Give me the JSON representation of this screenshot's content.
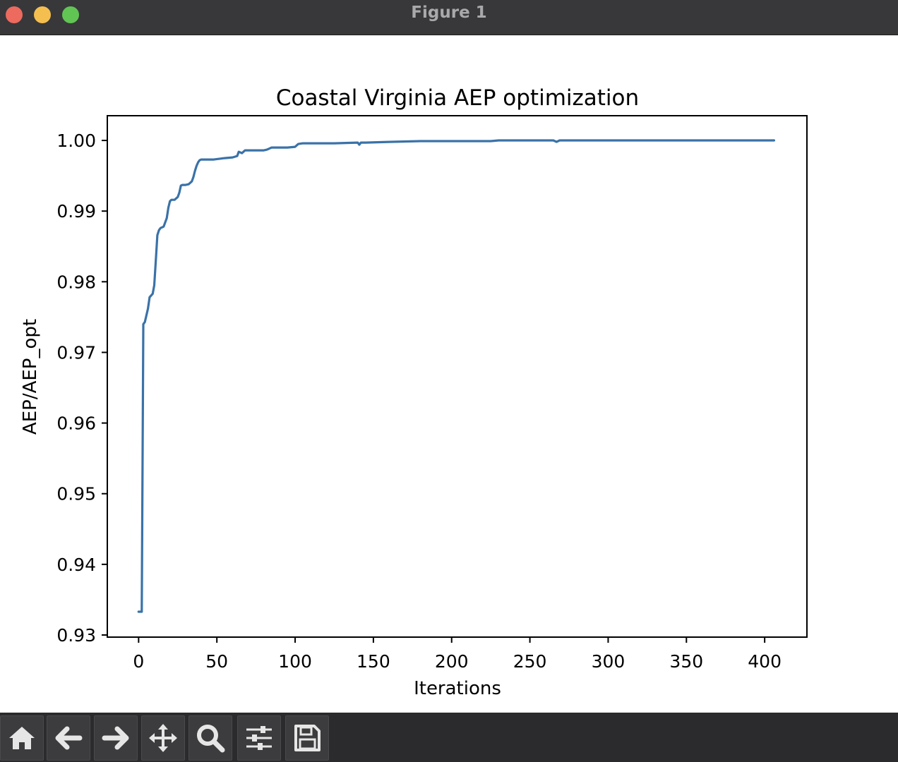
{
  "window": {
    "title": "Figure 1"
  },
  "toolbar": {
    "buttons": [
      {
        "name": "home-button",
        "icon": "home-icon"
      },
      {
        "name": "back-button",
        "icon": "arrow-left-icon"
      },
      {
        "name": "forward-button",
        "icon": "arrow-right-icon"
      },
      {
        "name": "pan-button",
        "icon": "move-icon"
      },
      {
        "name": "zoom-button",
        "icon": "magnifier-icon"
      },
      {
        "name": "configure-subplots-button",
        "icon": "sliders-icon"
      },
      {
        "name": "save-button",
        "icon": "floppy-disk-icon"
      }
    ]
  },
  "chart_data": {
    "type": "line",
    "title": "Coastal Virginia AEP optimization",
    "xlabel": "Iterations",
    "ylabel": "AEP/AEP_opt",
    "xlim": [
      -20,
      427
    ],
    "ylim": [
      0.9297,
      1.0035
    ],
    "xticks": [
      0,
      50,
      100,
      150,
      200,
      250,
      300,
      350,
      400
    ],
    "xtick_labels": [
      "0",
      "50",
      "100",
      "150",
      "200",
      "250",
      "300",
      "350",
      "400"
    ],
    "yticks": [
      0.93,
      0.94,
      0.95,
      0.96,
      0.97,
      0.98,
      0.99,
      1.0
    ],
    "ytick_labels": [
      "0.93",
      "0.94",
      "0.95",
      "0.96",
      "0.97",
      "0.98",
      "0.99",
      "1.00"
    ],
    "grid": false,
    "color": "#3a72a8",
    "series": [
      {
        "x": [
          0,
          1,
          2,
          3,
          4,
          6,
          7,
          9,
          10,
          11,
          12,
          13,
          14,
          16,
          18,
          19,
          20,
          21,
          22,
          23,
          25,
          26,
          27,
          28,
          29,
          30,
          32,
          34,
          35,
          36,
          37,
          38,
          39,
          40,
          41,
          43,
          48,
          55,
          60,
          63,
          64,
          66,
          68,
          75,
          80,
          82,
          85,
          95,
          100,
          102,
          105,
          125,
          140,
          141,
          142,
          145,
          160,
          180,
          225,
          230,
          240,
          265,
          267,
          269,
          280,
          300,
          350,
          406
        ],
        "y": [
          0.9333,
          0.9333,
          0.9333,
          0.974,
          0.9743,
          0.9762,
          0.9778,
          0.9783,
          0.9795,
          0.983,
          0.9866,
          0.9873,
          0.9876,
          0.9878,
          0.989,
          0.9905,
          0.9914,
          0.9916,
          0.9916,
          0.9916,
          0.992,
          0.9926,
          0.9936,
          0.9937,
          0.9937,
          0.9937,
          0.9938,
          0.9942,
          0.9948,
          0.9957,
          0.9964,
          0.9969,
          0.9972,
          0.9973,
          0.9973,
          0.9973,
          0.9973,
          0.9975,
          0.9976,
          0.9978,
          0.9984,
          0.9982,
          0.9986,
          0.9986,
          0.9986,
          0.9987,
          0.999,
          0.999,
          0.9991,
          0.9995,
          0.9996,
          0.9996,
          0.9997,
          0.9994,
          0.9997,
          0.9997,
          0.9998,
          0.9999,
          0.9999,
          1.0,
          1.0,
          1.0,
          0.9998,
          1.0,
          1.0,
          1.0,
          1.0,
          1.0
        ]
      }
    ]
  }
}
